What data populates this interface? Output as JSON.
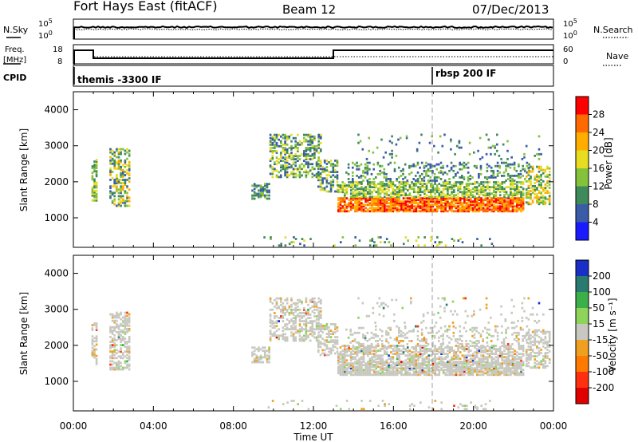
{
  "header": {
    "station": "Fort Hays East (fitACF)",
    "beam": "Beam 12",
    "date": "07/Dec/2013"
  },
  "sky_panel": {
    "left_label": "N.Sky",
    "right_label": "N.Search",
    "tick_top": "10^5",
    "tick_bottom": "10^0"
  },
  "freq_panel": {
    "left_label_1": "Freq.",
    "left_label_2": "[MHz]",
    "right_label": "Nave",
    "left_ticks": [
      "18",
      "8"
    ],
    "right_ticks": [
      "60",
      "0"
    ]
  },
  "cpid_panel": {
    "label": "CPID",
    "segments": [
      {
        "name": "themis -3300 IF",
        "start_hour": 0
      },
      {
        "name": "rbsp 200 IF",
        "start_hour": 18
      }
    ]
  },
  "chart_data": [
    {
      "type": "heatmap",
      "title": "Power",
      "ylabel": "Slant Range [km]",
      "xlabel": "",
      "x_ticks": [
        "00:00",
        "04:00",
        "08:00",
        "12:00",
        "16:00",
        "20:00",
        "00:00"
      ],
      "xlim_hours": [
        0,
        24
      ],
      "ylim": [
        180,
        4500
      ],
      "y_ticks": [
        1000,
        2000,
        3000,
        4000
      ],
      "colorbar_label": "Power [dB]",
      "colorbar_ticks": [
        28,
        24,
        20,
        16,
        12,
        8,
        4
      ],
      "colorbar_colors": [
        "#ff0000",
        "#ff6a00",
        "#ffae00",
        "#e8dc20",
        "#84c23c",
        "#3f8a5a",
        "#3a5ba8",
        "#1a1aff"
      ],
      "reference_line_hour": 18
    },
    {
      "type": "heatmap",
      "title": "Velocity",
      "ylabel": "Slant Range [km]",
      "xlabel": "Time UT",
      "x_ticks": [
        "00:00",
        "04:00",
        "08:00",
        "12:00",
        "16:00",
        "20:00",
        "00:00"
      ],
      "xlim_hours": [
        0,
        24
      ],
      "ylim": [
        180,
        4500
      ],
      "y_ticks": [
        1000,
        2000,
        3000,
        4000
      ],
      "colorbar_label": "Velocity [m s⁻¹]",
      "colorbar_ticks": [
        "200",
        "100",
        "50",
        "15",
        "-15",
        "-50",
        "-100",
        "-200"
      ],
      "colorbar_colors": [
        "#1a2fc8",
        "#2a7a70",
        "#3bb04a",
        "#8ed45a",
        "#c8c8c0",
        "#f0a020",
        "#ff7a00",
        "#ff3010",
        "#e00000"
      ],
      "reference_line_hour": 18
    }
  ]
}
